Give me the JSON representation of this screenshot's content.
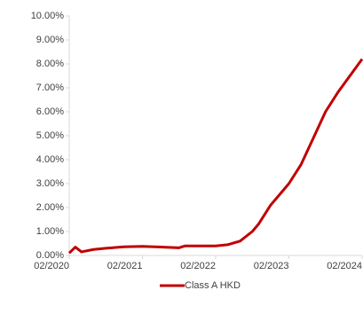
{
  "chart_data": {
    "type": "line",
    "x": [
      "02/2020",
      "03/2020",
      "04/2020",
      "06/2020",
      "08/2020",
      "11/2020",
      "02/2021",
      "05/2021",
      "08/2021",
      "09/2021",
      "12/2021",
      "02/2022",
      "04/2022",
      "06/2022",
      "08/2022",
      "09/2022",
      "11/2022",
      "01/2023",
      "02/2023",
      "04/2023",
      "06/2023",
      "08/2023",
      "10/2023",
      "12/2023",
      "02/2024"
    ],
    "series": [
      {
        "name": "Class A HKD",
        "color": "#c00000",
        "values": [
          0.1,
          0.35,
          0.15,
          0.25,
          0.3,
          0.36,
          0.38,
          0.35,
          0.32,
          0.4,
          0.4,
          0.4,
          0.45,
          0.6,
          1.0,
          1.3,
          2.1,
          2.7,
          3.0,
          3.8,
          4.9,
          6.0,
          6.8,
          7.5,
          8.2
        ]
      }
    ],
    "xlim": [
      "02/2020",
      "02/2024"
    ],
    "xticks": [
      "02/2020",
      "02/2021",
      "02/2022",
      "02/2023",
      "02/2024"
    ],
    "ylim": [
      0,
      10
    ],
    "yticks": [
      {
        "value": 0,
        "label": "0.00%"
      },
      {
        "value": 1,
        "label": "1.00%"
      },
      {
        "value": 2,
        "label": "2.00%"
      },
      {
        "value": 3,
        "label": "3.00%"
      },
      {
        "value": 4,
        "label": "4.00%"
      },
      {
        "value": 5,
        "label": "5.00%"
      },
      {
        "value": 6,
        "label": "6.00%"
      },
      {
        "value": 7,
        "label": "7.00%"
      },
      {
        "value": 8,
        "label": "8.00%"
      },
      {
        "value": 9,
        "label": "9.00%"
      },
      {
        "value": 10,
        "label": "10.00%"
      }
    ],
    "legend": "bottom"
  }
}
